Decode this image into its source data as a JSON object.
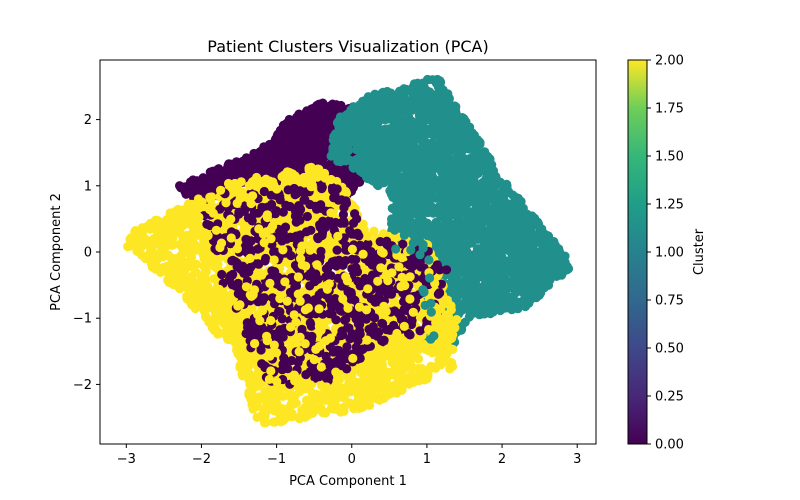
{
  "chart_data": {
    "type": "scatter",
    "title": "Patient Clusters Visualization (PCA)",
    "xlabel": "PCA Component 1",
    "ylabel": "PCA Component 2",
    "xlim": [
      -3.35,
      3.25
    ],
    "ylim": [
      -2.9,
      2.9
    ],
    "xticks": [
      -3,
      -2,
      -1,
      0,
      1,
      2,
      3
    ],
    "yticks": [
      -2,
      -1,
      0,
      1,
      2
    ],
    "grid": false,
    "colorbar": {
      "label": "Cluster",
      "range": [
        0.0,
        2.0
      ],
      "ticks": [
        "0.00",
        "0.25",
        "0.50",
        "0.75",
        "1.00",
        "1.25",
        "1.50",
        "1.75",
        "2.00"
      ],
      "colormap": "viridis"
    },
    "series": [
      {
        "cluster": 0,
        "color": "#440154",
        "region": [
          [
            -2.3,
            1.0
          ],
          [
            -1.2,
            1.55
          ],
          [
            -0.8,
            2.05
          ],
          [
            -0.4,
            2.25
          ],
          [
            0.2,
            2.2
          ],
          [
            0.4,
            1.4
          ],
          [
            -0.1,
            0.8
          ],
          [
            -1.3,
            1.1
          ],
          [
            -2.1,
            0.7
          ]
        ],
        "mixed_region": [
          [
            -1.7,
            0.9
          ],
          [
            -0.2,
            1.0
          ],
          [
            0.3,
            0.2
          ],
          [
            1.3,
            0.05
          ],
          [
            1.2,
            -1.2
          ],
          [
            0.5,
            -1.3
          ],
          [
            -0.3,
            -2.0
          ],
          [
            -1.1,
            -2.0
          ],
          [
            -1.6,
            -0.9
          ],
          [
            -2.0,
            0.6
          ]
        ]
      },
      {
        "cluster": 1,
        "color": "#21908d",
        "region": [
          [
            0.2,
            2.35
          ],
          [
            1.15,
            2.65
          ],
          [
            1.4,
            2.2
          ],
          [
            2.05,
            1.05
          ],
          [
            2.95,
            -0.2
          ],
          [
            2.3,
            -0.85
          ],
          [
            1.55,
            -1.0
          ],
          [
            1.3,
            -1.5
          ],
          [
            1.0,
            -1.3
          ],
          [
            0.9,
            -0.2
          ],
          [
            0.55,
            -0.1
          ],
          [
            0.5,
            0.9
          ],
          [
            -0.3,
            1.45
          ],
          [
            -0.2,
            2.0
          ]
        ]
      },
      {
        "cluster": 2,
        "color": "#fde725",
        "region": [
          [
            -3.1,
            0.2
          ],
          [
            -2.5,
            0.55
          ],
          [
            -1.65,
            1.05
          ],
          [
            -0.5,
            1.3
          ],
          [
            -0.15,
            1.05
          ],
          [
            0.2,
            0.35
          ],
          [
            1.0,
            0.15
          ],
          [
            1.4,
            -1.0
          ],
          [
            1.35,
            -1.75
          ],
          [
            0.2,
            -2.35
          ],
          [
            -0.8,
            -2.55
          ],
          [
            -1.25,
            -2.6
          ],
          [
            -1.55,
            -1.55
          ],
          [
            -2.45,
            -0.45
          ]
        ]
      }
    ]
  }
}
